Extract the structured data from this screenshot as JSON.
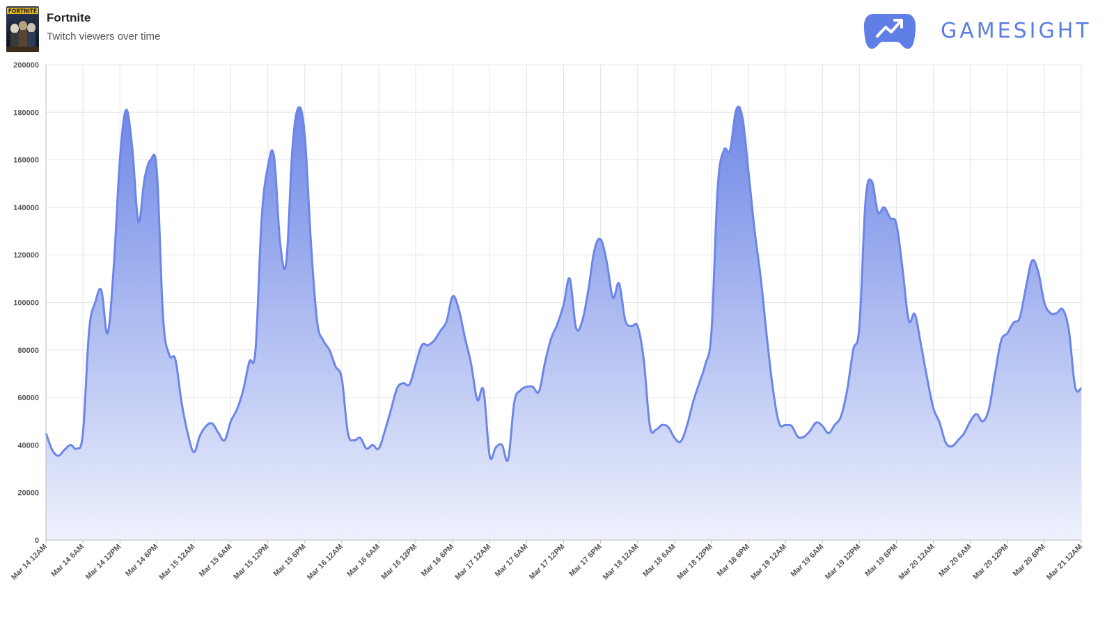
{
  "header": {
    "title": "Fortnite",
    "subtitle": "Twitch viewers over time",
    "thumbnail_text": "FORTNITE"
  },
  "brand": {
    "name": "GAMESIGHT",
    "color": "#5c7ee0"
  },
  "chart_data": {
    "type": "area",
    "title": "",
    "xlabel": "",
    "ylabel": "",
    "ylim": [
      0,
      200000
    ],
    "yticks": [
      0,
      20000,
      40000,
      60000,
      80000,
      100000,
      120000,
      140000,
      160000,
      180000,
      200000
    ],
    "xticks": [
      "Mar 14 12AM",
      "Mar 14 6AM",
      "Mar 14 12PM",
      "Mar 14 6PM",
      "Mar 15 12AM",
      "Mar 15 6AM",
      "Mar 15 12PM",
      "Mar 15 6PM",
      "Mar 16 12AM",
      "Mar 16 6AM",
      "Mar 16 12PM",
      "Mar 16 6PM",
      "Mar 17 12AM",
      "Mar 17 6AM",
      "Mar 17 12PM",
      "Mar 17 6PM",
      "Mar 18 12AM",
      "Mar 18 6AM",
      "Mar 18 12PM",
      "Mar 18 6PM",
      "Mar 19 12AM",
      "Mar 19 6AM",
      "Mar 19 12PM",
      "Mar 19 6PM",
      "Mar 20 12AM",
      "Mar 20 6AM",
      "Mar 20 12PM",
      "Mar 20 6PM",
      "Mar 21 12AM"
    ],
    "x_unit": "hours since Mar 14 12AM",
    "x": [
      0,
      1,
      2,
      3,
      4,
      5,
      6,
      7,
      8,
      9,
      10,
      11,
      12,
      13,
      14,
      15,
      16,
      17,
      18,
      19,
      20,
      21,
      22,
      23,
      24,
      25,
      26,
      27,
      28,
      29,
      30,
      31,
      32,
      33,
      34,
      35,
      36,
      37,
      38,
      39,
      40,
      41,
      42,
      43,
      44,
      45,
      46,
      47,
      48,
      49,
      50,
      51,
      52,
      53,
      54,
      55,
      56,
      57,
      58,
      59,
      60,
      61,
      62,
      63,
      64,
      65,
      66,
      67,
      68,
      69,
      70,
      71,
      72,
      73,
      74,
      75,
      76,
      77,
      78,
      79,
      80,
      81,
      82,
      83,
      84,
      85,
      86,
      87,
      88,
      89,
      90,
      91,
      92,
      93,
      94,
      95,
      96,
      97,
      98,
      99,
      100,
      101,
      102,
      103,
      104,
      105,
      106,
      107,
      108,
      109,
      110,
      111,
      112,
      113,
      114,
      115,
      116,
      117,
      118,
      119,
      120,
      121,
      122,
      123,
      124,
      125,
      126,
      127,
      128,
      129,
      130,
      131,
      132,
      133,
      134,
      135,
      136,
      137,
      138,
      139,
      140,
      141,
      142,
      143,
      144,
      145,
      146,
      147,
      148,
      149,
      150,
      151,
      152,
      153,
      154,
      155,
      156,
      157,
      158,
      159,
      160,
      161,
      162,
      163,
      164,
      165,
      166,
      167,
      168
    ],
    "series": [
      {
        "values": [
          45000,
          38000,
          35500,
          38000,
          40000,
          38500,
          45000,
          88000,
          100000,
          105000,
          87000,
          115000,
          160000,
          181000,
          165000,
          134000,
          152000,
          160000,
          155000,
          94000,
          78000,
          76000,
          58000,
          45000,
          37000,
          44000,
          48000,
          49000,
          45000,
          42000,
          50000,
          55000,
          63000,
          75000,
          80000,
          135000,
          157000,
          161500,
          125000,
          117000,
          165000,
          182000,
          170000,
          125000,
          92000,
          84000,
          80000,
          73000,
          68000,
          45000,
          42000,
          43000,
          38500,
          40000,
          38500,
          46000,
          55000,
          64000,
          66000,
          65500,
          74000,
          82000,
          82000,
          84000,
          88000,
          92000,
          102500,
          97000,
          85000,
          74000,
          59000,
          63000,
          35500,
          39000,
          40000,
          34000,
          58000,
          63000,
          64500,
          64500,
          62500,
          75000,
          85000,
          91000,
          99000,
          110000,
          89500,
          92000,
          105000,
          122000,
          126500,
          117000,
          102000,
          108000,
          92500,
          90000,
          90000,
          76000,
          48000,
          46500,
          48500,
          47500,
          43000,
          41500,
          48000,
          58000,
          66000,
          74000,
          88000,
          148000,
          164000,
          164000,
          181000,
          178000,
          155000,
          130000,
          110000,
          85000,
          63000,
          49000,
          48500,
          48000,
          43500,
          43500,
          46000,
          49500,
          48000,
          45000,
          48500,
          52000,
          63000,
          80000,
          90000,
          143000,
          151000,
          138000,
          140000,
          135500,
          133000,
          114000,
          92500,
          95000,
          82000,
          68000,
          55500,
          49500,
          41000,
          39500,
          42000,
          45000,
          50000,
          53000,
          50000,
          55000,
          70000,
          84000,
          87000,
          91500,
          93500,
          106000,
          117500,
          113000,
          100000,
          95500,
          95500,
          97000,
          88000,
          64500,
          64000
        ]
      }
    ],
    "line_color": "#6b86e8",
    "fill_top_color": "#6f88e6",
    "fill_bottom_color": "#eef1fc",
    "grid": true,
    "legend": "none"
  }
}
